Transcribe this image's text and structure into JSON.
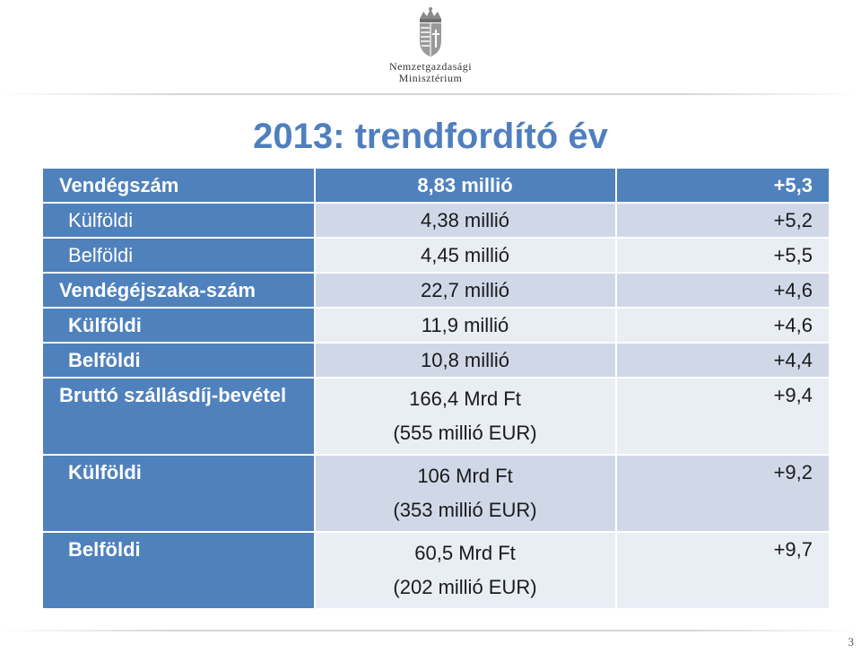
{
  "header": {
    "crest_icon": "hungarian-coat-of-arms-icon",
    "ministry_line1": "Nemzetgazdasági",
    "ministry_line2": "Minisztérium"
  },
  "title": "2013: trendfordító év",
  "colors": {
    "title": "#4f7fbf",
    "header_row": "#4f81bd",
    "row_dark": "#d0d8e8",
    "row_light": "#e9edf4"
  },
  "rows": [
    {
      "label": "Vendégszám",
      "value_lines": [
        "8,83 millió"
      ],
      "change": "+5,3"
    },
    {
      "label": "Külföldi",
      "value_lines": [
        "4,38 millió"
      ],
      "change": "+5,2"
    },
    {
      "label": "Belföldi",
      "value_lines": [
        "4,45 millió"
      ],
      "change": "+5,5"
    },
    {
      "label": "Vendégéjszaka-szám",
      "value_lines": [
        "22,7 millió"
      ],
      "change": "+4,6"
    },
    {
      "label": "Külföldi",
      "value_lines": [
        "11,9 millió"
      ],
      "change": "+4,6"
    },
    {
      "label": "Belföldi",
      "value_lines": [
        "10,8 millió"
      ],
      "change": "+4,4"
    },
    {
      "label": "Bruttó szállásdíj-bevétel",
      "value_lines": [
        "166,4 Mrd Ft",
        "(555 millió EUR)"
      ],
      "change": "+9,4"
    },
    {
      "label": "Külföldi",
      "value_lines": [
        "106 Mrd Ft",
        "(353 millió EUR)"
      ],
      "change": "+9,2"
    },
    {
      "label": "Belföldi",
      "value_lines": [
        "60,5 Mrd Ft",
        "(202 millió EUR)"
      ],
      "change": "+9,7"
    }
  ],
  "page_number": "3"
}
